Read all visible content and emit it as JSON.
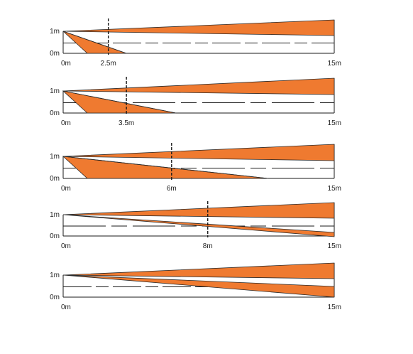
{
  "colors": {
    "beam_fill": "#ef7a30",
    "beam_stroke": "#2a2a2a",
    "line": "#1a1a1a",
    "text": "#222222"
  },
  "panels": [
    {
      "label_top": "1m",
      "label_bottom": "0m",
      "label_origin": "0m",
      "label_end": "15m",
      "mark_label": "2.5m",
      "mark_distance": 2.5,
      "lower_beam": "triangle"
    },
    {
      "label_top": "1m",
      "label_bottom": "0m",
      "label_origin": "0m",
      "label_end": "15m",
      "mark_label": "3.5m",
      "mark_distance": 3.5,
      "lower_beam": "triangle"
    },
    {
      "label_top": "1m",
      "label_bottom": "0m",
      "label_origin": "0m",
      "label_end": "15m",
      "mark_label": "6m",
      "mark_distance": 6,
      "lower_beam": "triangle"
    },
    {
      "label_top": "1m",
      "label_bottom": "0m",
      "label_origin": "0m",
      "label_end": "15m",
      "mark_label": "8m",
      "mark_distance": 8,
      "lower_beam": "wedge"
    },
    {
      "label_top": "1m",
      "label_bottom": "0m",
      "label_origin": "0m",
      "label_end": "15m",
      "mark_label": "",
      "mark_distance": null,
      "lower_beam": "wedge"
    }
  ]
}
